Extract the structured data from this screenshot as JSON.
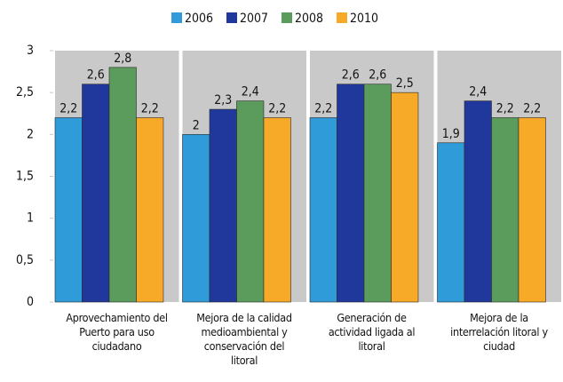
{
  "chart_data": {
    "type": "bar",
    "categories": [
      "Aprovechamiento del\nPuerto para uso\nciudadano",
      "Mejora de la calidad\nmedioambiental y\nconservación del\nlitoral",
      "Generación de\nactividad ligada al\nlitoral",
      "Mejora de la\ninterrelación litoral y\nciudad"
    ],
    "series": [
      {
        "name": "2006",
        "color": "#2f9bd9",
        "values": [
          2.2,
          2,
          2.2,
          1.9
        ],
        "value_labels": [
          "2,2",
          "2",
          "2,2",
          "1,9"
        ]
      },
      {
        "name": "2007",
        "color": "#20389c",
        "values": [
          2.6,
          2.3,
          2.6,
          2.4
        ],
        "value_labels": [
          "2,6",
          "2,3",
          "2,6",
          "2,4"
        ]
      },
      {
        "name": "2008",
        "color": "#5b9b5c",
        "values": [
          2.8,
          2.4,
          2.6,
          2.2
        ],
        "value_labels": [
          "2,8",
          "2,4",
          "2,6",
          "2,2"
        ]
      },
      {
        "name": "2010",
        "color": "#f7a928",
        "values": [
          2.2,
          2.2,
          2.5,
          2.2
        ],
        "value_labels": [
          "2,2",
          "2,2",
          "2,5",
          "2,2"
        ]
      }
    ],
    "ylim": [
      0,
      3
    ],
    "yticks": [
      0,
      {
        "value": 0.5,
        "label": "0,5"
      },
      1,
      {
        "value": 1.5,
        "label": "1,5"
      },
      2,
      {
        "value": 2.5,
        "label": "2,5"
      },
      3
    ],
    "legend": "top"
  }
}
